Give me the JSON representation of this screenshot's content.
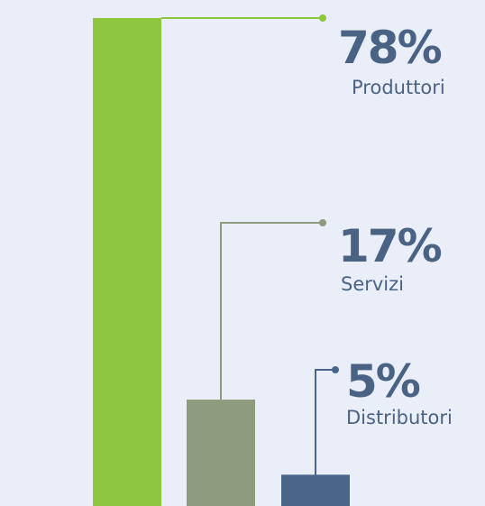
{
  "chart_data": {
    "type": "bar",
    "categories": [
      "Produttori",
      "Servizi",
      "Distributori"
    ],
    "values": [
      78,
      17,
      5
    ],
    "value_labels": [
      "78%",
      "17%",
      "5%"
    ],
    "colors": [
      "#8dc63f",
      "#8c9c7c",
      "#4a6588"
    ]
  }
}
